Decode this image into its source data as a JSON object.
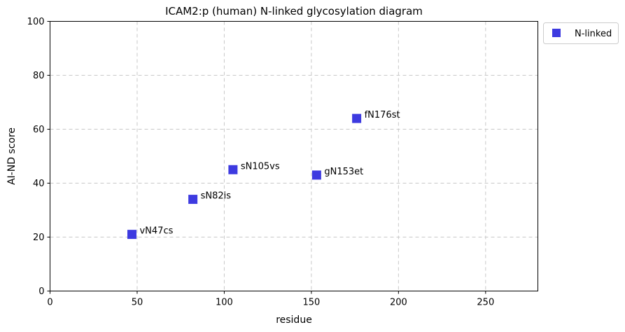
{
  "chart_data": {
    "type": "scatter",
    "title": "ICAM2:p (human) N-linked glycosylation diagram",
    "xlabel": "residue",
    "ylabel": "AI-ND score",
    "xlim": [
      0,
      280
    ],
    "ylim": [
      0,
      100
    ],
    "xticks": [
      0,
      50,
      100,
      150,
      200,
      250
    ],
    "yticks": [
      0,
      20,
      40,
      60,
      80,
      100
    ],
    "grid": true,
    "legend": {
      "placement": "outside-top-right"
    },
    "series": [
      {
        "name": "N-linked",
        "color": "#3d3ae0",
        "marker": "square",
        "points": [
          {
            "x": 47,
            "y": 21,
            "label": "vN47cs"
          },
          {
            "x": 82,
            "y": 34,
            "label": "sN82is"
          },
          {
            "x": 105,
            "y": 45,
            "label": "sN105vs"
          },
          {
            "x": 153,
            "y": 43,
            "label": "gN153et"
          },
          {
            "x": 176,
            "y": 64,
            "label": "fN176st"
          }
        ]
      }
    ]
  }
}
